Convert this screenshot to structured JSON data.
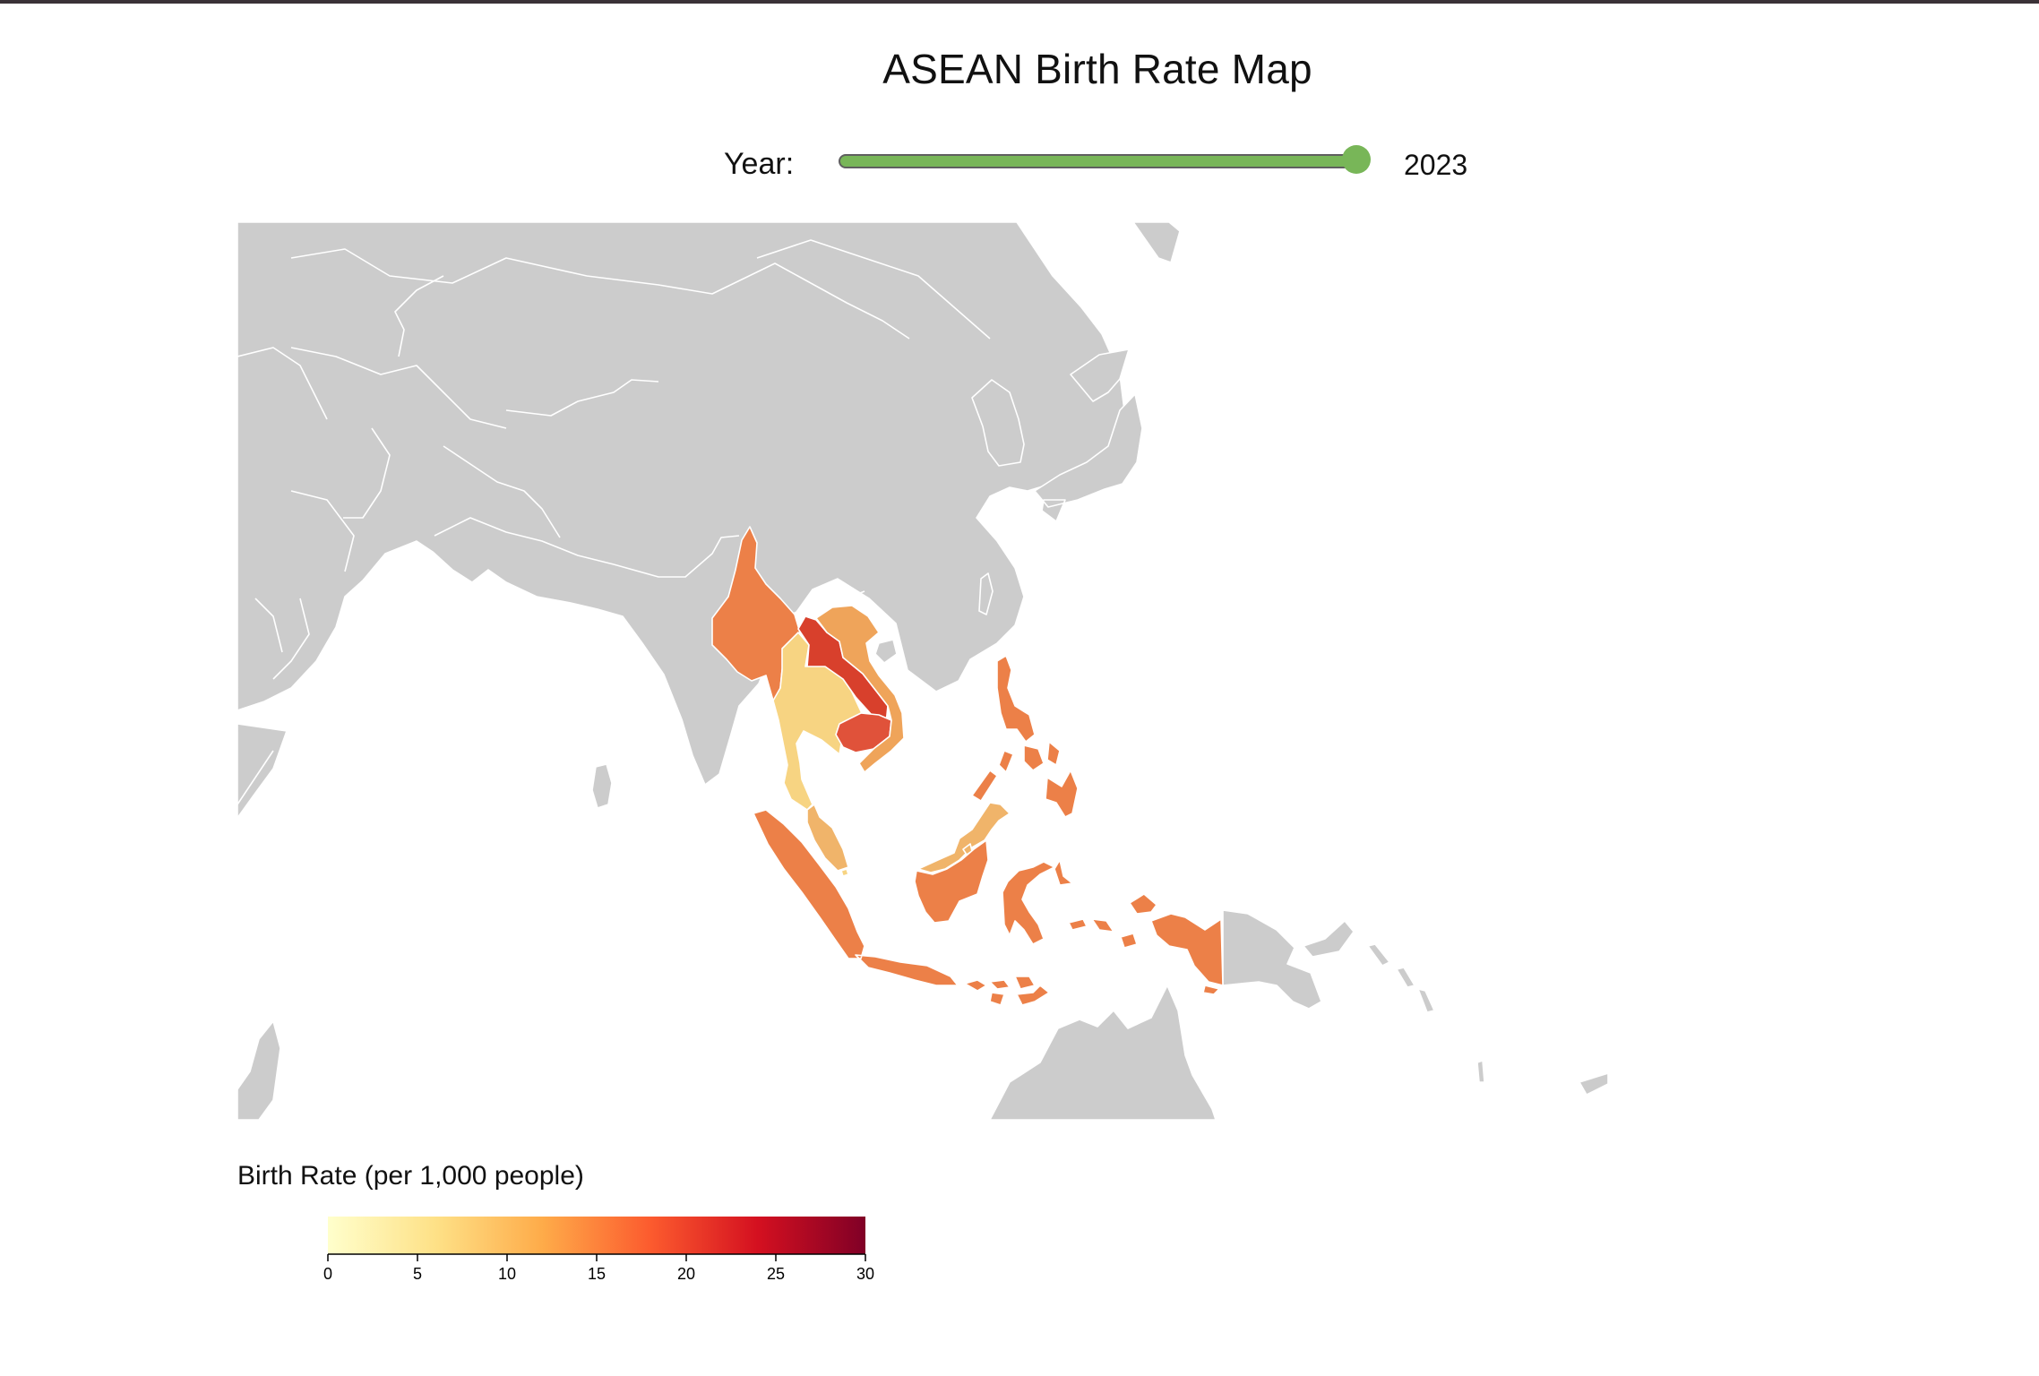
{
  "page": {
    "title": "ASEAN Birth Rate Map"
  },
  "controls": {
    "year_label": "Year:",
    "year_value": "2023",
    "slider_position": 1.0,
    "slider_color": "#78b658"
  },
  "legend": {
    "title": "Birth Rate (per 1,000 people)",
    "domain": [
      0,
      30
    ],
    "ticks": [
      "0",
      "5",
      "10",
      "15",
      "20",
      "25",
      "30"
    ],
    "color_stops": [
      "#ffffcc",
      "#fee187",
      "#feab49",
      "#fc5b2e",
      "#d41020",
      "#800026"
    ]
  },
  "map": {
    "no_data_color": "#cccccc",
    "country_border_color": "#ffffff",
    "asean_countries": [
      {
        "name": "Myanmar",
        "birth_rate": 16.5,
        "color": "#ec8048"
      },
      {
        "name": "Thailand",
        "birth_rate": 8.5,
        "color": "#f7d482"
      },
      {
        "name": "Laos",
        "birth_rate": 21.5,
        "color": "#d8402c"
      },
      {
        "name": "Cambodia",
        "birth_rate": 19.5,
        "color": "#e0523a"
      },
      {
        "name": "Vietnam",
        "birth_rate": 14.0,
        "color": "#efa45a"
      },
      {
        "name": "Malaysia",
        "birth_rate": 13.0,
        "color": "#f0b46a"
      },
      {
        "name": "Singapore",
        "birth_rate": 8.0,
        "color": "#f7d482"
      },
      {
        "name": "Brunei",
        "birth_rate": 13.5,
        "color": "#f0b46a"
      },
      {
        "name": "Philippines",
        "birth_rate": 16.5,
        "color": "#ec8048"
      },
      {
        "name": "Indonesia",
        "birth_rate": 16.0,
        "color": "#ec8048"
      }
    ]
  }
}
